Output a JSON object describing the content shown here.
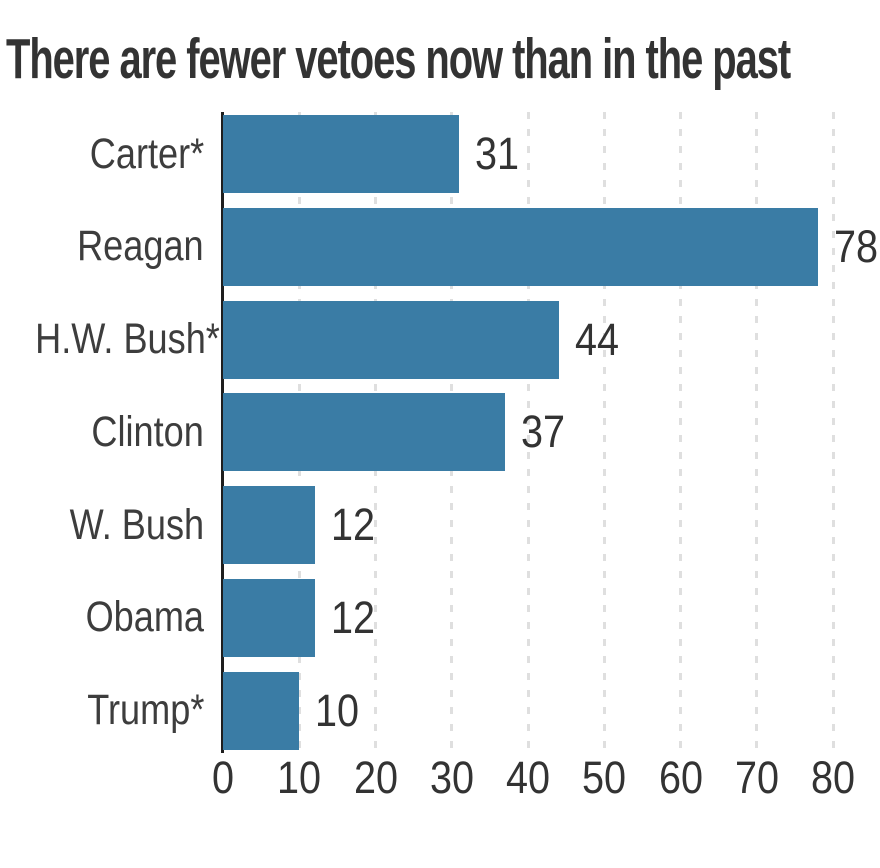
{
  "title": "There are fewer vetoes now than in the past",
  "chart_data": {
    "type": "bar",
    "orientation": "horizontal",
    "title": "There are fewer vetoes now than in the past",
    "categories": [
      "Carter*",
      "Reagan",
      "H.W. Bush*",
      "Clinton",
      "W. Bush",
      "Obama",
      "Trump*"
    ],
    "values": [
      31,
      78,
      44,
      37,
      12,
      12,
      10
    ],
    "value_labels": [
      "31",
      "78",
      "44",
      "37",
      "12",
      "12",
      "10"
    ],
    "xlabel": "",
    "ylabel": "",
    "xlim": [
      0,
      80
    ],
    "xticks": [
      0,
      10,
      20,
      30,
      40,
      50,
      60,
      70,
      80
    ],
    "grid": "vertical-dashed",
    "legend": "none"
  },
  "colors": {
    "background": "#ffffff",
    "bar": "#3A7CA5",
    "title_text": "#333333",
    "category_text": "#3d3d3d",
    "value_text": "#333333",
    "tick_text": "#333333",
    "gridline": "#dfdfdf",
    "axis_line": "#1e1e1e"
  }
}
